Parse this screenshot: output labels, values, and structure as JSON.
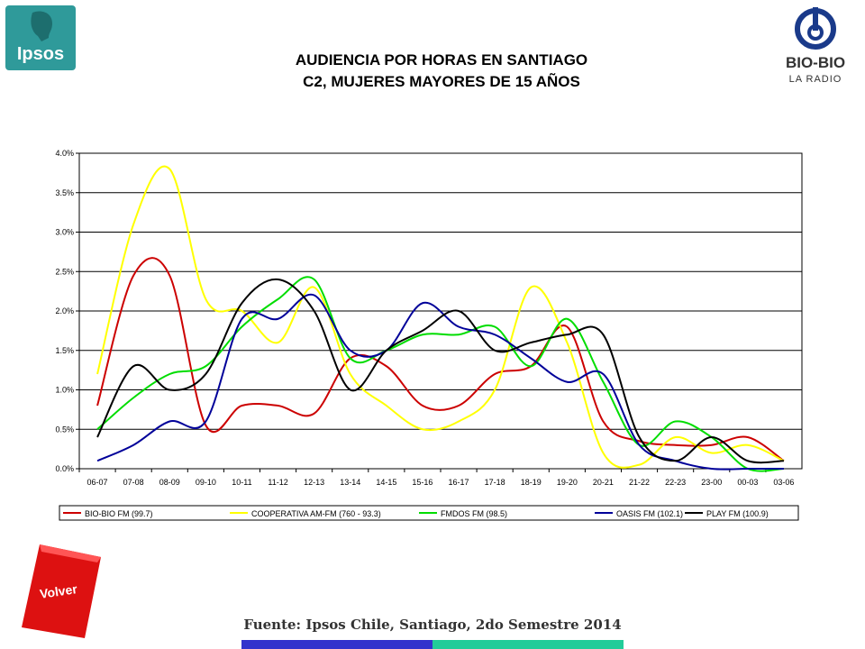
{
  "logos": {
    "ipsos_text": "Ipsos",
    "bio_name": "BIO-BIO",
    "bio_sub": "LA RADIO"
  },
  "header": {
    "title_line1": "AUDIENCIA POR HORAS EN SANTIAGO",
    "title_line2": "C2, MUJERES MAYORES DE 15 AÑOS"
  },
  "volver_label": "Volver",
  "source": "Fuente: Ipsos Chile, Santiago, 2do Semestre 2014",
  "chart_data": {
    "type": "line",
    "title": "AUDIENCIA POR HORAS EN SANTIAGO C2, MUJERES MAYORES DE 15 AÑOS",
    "xlabel": "",
    "ylabel": "",
    "ylim": [
      0,
      4.0
    ],
    "yticks": [
      "0.0%",
      "0.5%",
      "1.0%",
      "1.5%",
      "2.0%",
      "2.5%",
      "3.0%",
      "3.5%",
      "4.0%"
    ],
    "grid": true,
    "legend_position": "bottom",
    "categories": [
      "06-07",
      "07-08",
      "08-09",
      "09-10",
      "10-11",
      "11-12",
      "12-13",
      "13-14",
      "14-15",
      "15-16",
      "16-17",
      "17-18",
      "18-19",
      "19-20",
      "20-21",
      "21-22",
      "22-23",
      "23-00",
      "00-03",
      "03-06"
    ],
    "series": [
      {
        "name": "BIO-BIO FM (99.7)",
        "color": "#cc0000",
        "values": [
          0.8,
          2.45,
          2.45,
          0.55,
          0.8,
          0.8,
          0.7,
          1.4,
          1.3,
          0.8,
          0.8,
          1.2,
          1.3,
          1.8,
          0.6,
          0.35,
          0.3,
          0.3,
          0.4,
          0.1
        ]
      },
      {
        "name": "COOPERATIVA AM-FM (760 - 93.3)",
        "color": "#ffff00",
        "values": [
          1.2,
          3.1,
          3.8,
          2.15,
          2.0,
          1.6,
          2.3,
          1.2,
          0.8,
          0.5,
          0.6,
          1.0,
          2.3,
          1.6,
          0.2,
          0.05,
          0.4,
          0.2,
          0.3,
          0.1
        ]
      },
      {
        "name": "FMDOS FM (98.5)",
        "color": "#00dd00",
        "values": [
          0.5,
          0.9,
          1.2,
          1.3,
          1.8,
          2.15,
          2.4,
          1.4,
          1.5,
          1.7,
          1.7,
          1.8,
          1.3,
          1.9,
          1.1,
          0.3,
          0.6,
          0.4,
          0.0,
          0.0
        ]
      },
      {
        "name": "OASIS FM (102.1)",
        "color": "#000099",
        "values": [
          0.1,
          0.3,
          0.6,
          0.6,
          1.9,
          1.9,
          2.2,
          1.5,
          1.5,
          2.1,
          1.8,
          1.7,
          1.4,
          1.1,
          1.2,
          0.3,
          0.1,
          0.0,
          0.0,
          0.0
        ]
      },
      {
        "name": "PLAY FM (100.9)",
        "color": "#000000",
        "values": [
          0.4,
          1.3,
          1.0,
          1.2,
          2.1,
          2.4,
          2.0,
          1.0,
          1.5,
          1.75,
          2.0,
          1.5,
          1.6,
          1.7,
          1.7,
          0.4,
          0.1,
          0.4,
          0.1,
          0.1
        ]
      }
    ]
  }
}
